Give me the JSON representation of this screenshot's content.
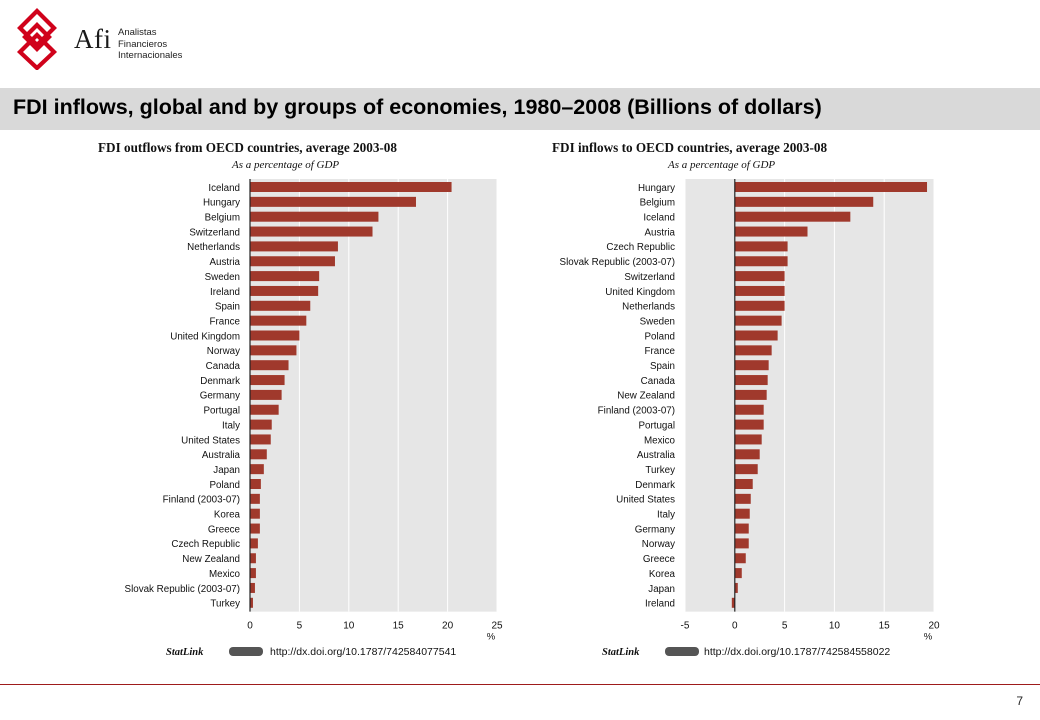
{
  "header": {
    "logo_text": "Afi",
    "logo_sub": [
      "Analistas",
      "Financieros",
      "Internacionales"
    ],
    "brand_color": "#d0021b"
  },
  "slide": {
    "title": "FDI inflows, global and by groups of economies, 1980–2008 (Billions of dollars)",
    "page_number": "7"
  },
  "colors": {
    "bar": "#a0392c",
    "plot_bg": "#e6e6e6",
    "grid": "#ffffff"
  },
  "chart_data": [
    {
      "type": "bar",
      "orientation": "horizontal",
      "title": "FDI outflows from OECD countries, average 2003-08",
      "subtitle": "As a percentage of GDP",
      "xlabel": "%",
      "xlim": [
        0,
        25
      ],
      "xticks": [
        0,
        5,
        10,
        15,
        20,
        25
      ],
      "grid": true,
      "statlink_label": "StatLink",
      "statlink_url": "http://dx.doi.org/10.1787/742584077541",
      "categories": [
        "Iceland",
        "Hungary",
        "Belgium",
        "Switzerland",
        "Netherlands",
        "Austria",
        "Sweden",
        "Ireland",
        "Spain",
        "France",
        "United Kingdom",
        "Norway",
        "Canada",
        "Denmark",
        "Germany",
        "Portugal",
        "Italy",
        "United States",
        "Australia",
        "Japan",
        "Poland",
        "Finland (2003-07)",
        "Korea",
        "Greece",
        "Czech Republic",
        "New Zealand",
        "Mexico",
        "Slovak Republic (2003-07)",
        "Turkey"
      ],
      "values": [
        20.4,
        16.8,
        13.0,
        12.4,
        8.9,
        8.6,
        7.0,
        6.9,
        6.1,
        5.7,
        5.0,
        4.7,
        3.9,
        3.5,
        3.2,
        2.9,
        2.2,
        2.1,
        1.7,
        1.4,
        1.1,
        1.0,
        1.0,
        1.0,
        0.8,
        0.6,
        0.6,
        0.5,
        0.3
      ]
    },
    {
      "type": "bar",
      "orientation": "horizontal",
      "title": "FDI inflows to OECD countries, average 2003-08",
      "subtitle": "As a percentage of GDP",
      "xlabel": "%",
      "xlim": [
        -5,
        20
      ],
      "xticks": [
        -5,
        0,
        5,
        10,
        15,
        20
      ],
      "grid": true,
      "statlink_label": "StatLink",
      "statlink_url": "http://dx.doi.org/10.1787/742584558022",
      "categories": [
        "Hungary",
        "Belgium",
        "Iceland",
        "Austria",
        "Czech Republic",
        "Slovak Republic (2003-07)",
        "Switzerland",
        "United Kingdom",
        "Netherlands",
        "Sweden",
        "Poland",
        "France",
        "Spain",
        "Canada",
        "New Zealand",
        "Finland (2003-07)",
        "Portugal",
        "Mexico",
        "Australia",
        "Turkey",
        "Denmark",
        "United States",
        "Italy",
        "Germany",
        "Norway",
        "Greece",
        "Korea",
        "Japan",
        "Ireland"
      ],
      "values": [
        19.3,
        13.9,
        11.6,
        7.3,
        5.3,
        5.3,
        5.0,
        5.0,
        5.0,
        4.7,
        4.3,
        3.7,
        3.4,
        3.3,
        3.2,
        2.9,
        2.9,
        2.7,
        2.5,
        2.3,
        1.8,
        1.6,
        1.5,
        1.4,
        1.4,
        1.1,
        0.7,
        0.3,
        -0.3
      ]
    }
  ]
}
